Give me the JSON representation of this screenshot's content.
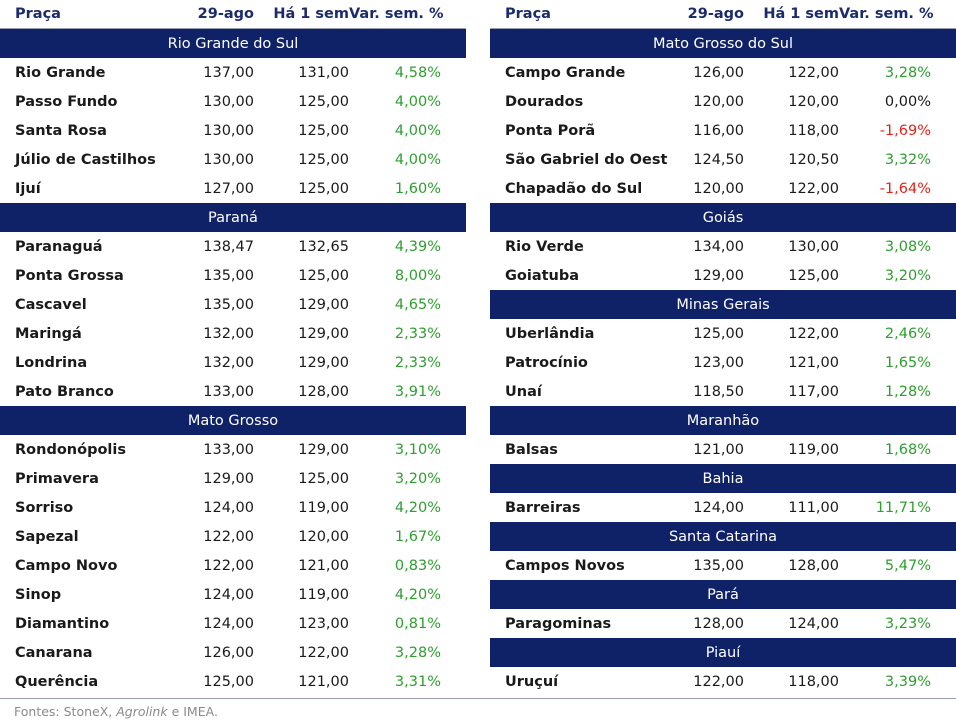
{
  "headers": {
    "praca": "Praça",
    "current": "29-ago",
    "previous": "Há 1 sem",
    "variation": "Var. sem. %"
  },
  "left_sections": [
    {
      "title": "Rio Grande do Sul",
      "rows": [
        {
          "name": "Rio Grande",
          "current": "137,00",
          "previous": "131,00",
          "var": "4,58%",
          "sign": "pos"
        },
        {
          "name": "Passo Fundo",
          "current": "130,00",
          "previous": "125,00",
          "var": "4,00%",
          "sign": "pos"
        },
        {
          "name": "Santa Rosa",
          "current": "130,00",
          "previous": "125,00",
          "var": "4,00%",
          "sign": "pos"
        },
        {
          "name": "Júlio de Castilhos",
          "current": "130,00",
          "previous": "125,00",
          "var": "4,00%",
          "sign": "pos"
        },
        {
          "name": "Ijuí",
          "current": "127,00",
          "previous": "125,00",
          "var": "1,60%",
          "sign": "pos"
        }
      ]
    },
    {
      "title": "Paraná",
      "rows": [
        {
          "name": "Paranaguá",
          "current": "138,47",
          "previous": "132,65",
          "var": "4,39%",
          "sign": "pos"
        },
        {
          "name": "Ponta Grossa",
          "current": "135,00",
          "previous": "125,00",
          "var": "8,00%",
          "sign": "pos"
        },
        {
          "name": "Cascavel",
          "current": "135,00",
          "previous": "129,00",
          "var": "4,65%",
          "sign": "pos"
        },
        {
          "name": "Maringá",
          "current": "132,00",
          "previous": "129,00",
          "var": "2,33%",
          "sign": "pos"
        },
        {
          "name": "Londrina",
          "current": "132,00",
          "previous": "129,00",
          "var": "2,33%",
          "sign": "pos"
        },
        {
          "name": "Pato Branco",
          "current": "133,00",
          "previous": "128,00",
          "var": "3,91%",
          "sign": "pos"
        }
      ]
    },
    {
      "title": "Mato Grosso",
      "rows": [
        {
          "name": "Rondonópolis",
          "current": "133,00",
          "previous": "129,00",
          "var": "3,10%",
          "sign": "pos"
        },
        {
          "name": "Primavera",
          "current": "129,00",
          "previous": "125,00",
          "var": "3,20%",
          "sign": "pos"
        },
        {
          "name": "Sorriso",
          "current": "124,00",
          "previous": "119,00",
          "var": "4,20%",
          "sign": "pos"
        },
        {
          "name": "Sapezal",
          "current": "122,00",
          "previous": "120,00",
          "var": "1,67%",
          "sign": "pos"
        },
        {
          "name": "Campo Novo",
          "current": "122,00",
          "previous": "121,00",
          "var": "0,83%",
          "sign": "pos"
        },
        {
          "name": "Sinop",
          "current": "124,00",
          "previous": "119,00",
          "var": "4,20%",
          "sign": "pos"
        },
        {
          "name": "Diamantino",
          "current": "124,00",
          "previous": "123,00",
          "var": "0,81%",
          "sign": "pos"
        },
        {
          "name": "Canarana",
          "current": "126,00",
          "previous": "122,00",
          "var": "3,28%",
          "sign": "pos"
        },
        {
          "name": "Querência",
          "current": "125,00",
          "previous": "121,00",
          "var": "3,31%",
          "sign": "pos"
        }
      ]
    }
  ],
  "right_sections": [
    {
      "title": "Mato Grosso do Sul",
      "rows": [
        {
          "name": "Campo Grande",
          "current": "126,00",
          "previous": "122,00",
          "var": "3,28%",
          "sign": "pos"
        },
        {
          "name": "Dourados",
          "current": "120,00",
          "previous": "120,00",
          "var": "0,00%",
          "sign": "zero"
        },
        {
          "name": "Ponta Porã",
          "current": "116,00",
          "previous": "118,00",
          "var": "-1,69%",
          "sign": "neg"
        },
        {
          "name": "São Gabriel do Oeste",
          "current": "124,50",
          "previous": "120,50",
          "var": "3,32%",
          "sign": "pos"
        },
        {
          "name": "Chapadão do Sul",
          "current": "120,00",
          "previous": "122,00",
          "var": "-1,64%",
          "sign": "neg"
        }
      ]
    },
    {
      "title": "Goiás",
      "rows": [
        {
          "name": "Rio Verde",
          "current": "134,00",
          "previous": "130,00",
          "var": "3,08%",
          "sign": "pos"
        },
        {
          "name": "Goiatuba",
          "current": "129,00",
          "previous": "125,00",
          "var": "3,20%",
          "sign": "pos"
        }
      ]
    },
    {
      "title": "Minas Gerais",
      "rows": [
        {
          "name": "Uberlândia",
          "current": "125,00",
          "previous": "122,00",
          "var": "2,46%",
          "sign": "pos"
        },
        {
          "name": "Patrocínio",
          "current": "123,00",
          "previous": "121,00",
          "var": "1,65%",
          "sign": "pos"
        },
        {
          "name": "Unaí",
          "current": "118,50",
          "previous": "117,00",
          "var": "1,28%",
          "sign": "pos"
        }
      ]
    },
    {
      "title": "Maranhão",
      "rows": [
        {
          "name": "Balsas",
          "current": "121,00",
          "previous": "119,00",
          "var": "1,68%",
          "sign": "pos"
        }
      ]
    },
    {
      "title": "Bahia",
      "rows": [
        {
          "name": "Barreiras",
          "current": "124,00",
          "previous": "111,00",
          "var": "11,71%",
          "sign": "pos"
        }
      ]
    },
    {
      "title": "Santa Catarina",
      "rows": [
        {
          "name": "Campos Novos",
          "current": "135,00",
          "previous": "128,00",
          "var": "5,47%",
          "sign": "pos"
        }
      ]
    },
    {
      "title": "Pará",
      "rows": [
        {
          "name": "Paragominas",
          "current": "128,00",
          "previous": "124,00",
          "var": "3,23%",
          "sign": "pos"
        }
      ]
    },
    {
      "title": "Piauí",
      "rows": [
        {
          "name": "Uruçuí",
          "current": "122,00",
          "previous": "118,00",
          "var": "3,39%",
          "sign": "pos"
        }
      ]
    }
  ],
  "footer": {
    "source_prefix": "Fontes: StoneX, ",
    "source_italic": "Agrolink",
    "source_suffix": " e IMEA."
  },
  "colors": {
    "section_bg": "#0f2167",
    "header_text": "#1c2b6b",
    "positive": "#2e9e2e",
    "negative": "#e2231a"
  }
}
